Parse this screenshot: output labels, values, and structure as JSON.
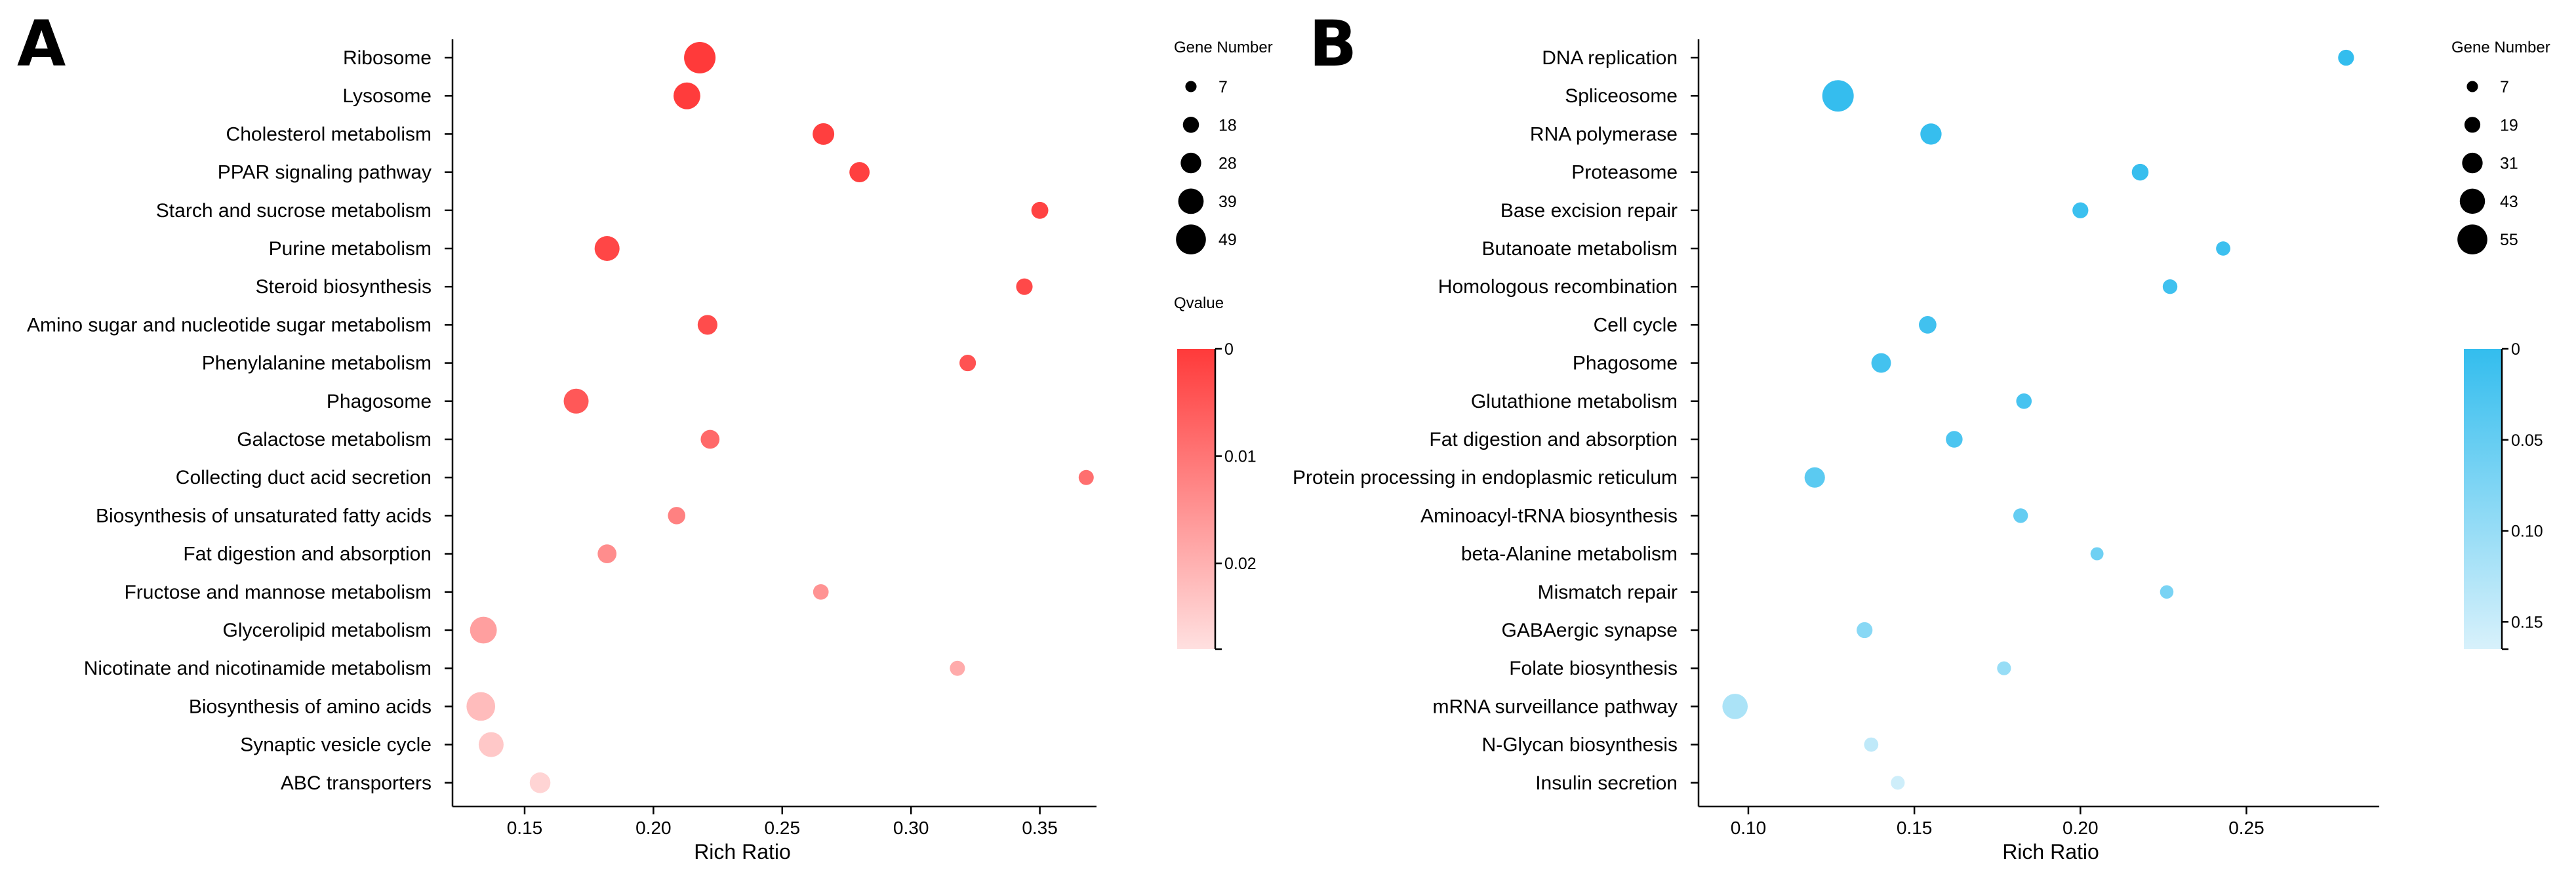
{
  "chart_data": [
    {
      "panel": "A",
      "type": "scatter",
      "xlabel": "Rich Ratio",
      "xlim": [
        0.122,
        0.372
      ],
      "xticks": [
        0.15,
        0.2,
        0.25,
        0.3,
        0.35
      ],
      "xtick_labels": [
        "0.15",
        "0.20",
        "0.25",
        "0.30",
        "0.35"
      ],
      "points": [
        {
          "pathway": "Ribosome",
          "rich_ratio": 0.218,
          "gene_number": 49,
          "qvalue": 0.0
        },
        {
          "pathway": "Lysosome",
          "rich_ratio": 0.213,
          "gene_number": 39,
          "qvalue": 0.0003
        },
        {
          "pathway": "Cholesterol metabolism",
          "rich_ratio": 0.266,
          "gene_number": 28,
          "qvalue": 0.0008
        },
        {
          "pathway": "PPAR signaling pathway",
          "rich_ratio": 0.28,
          "gene_number": 25,
          "qvalue": 0.001
        },
        {
          "pathway": "Starch and sucrose metabolism",
          "rich_ratio": 0.35,
          "gene_number": 18,
          "qvalue": 0.0015
        },
        {
          "pathway": "Purine metabolism",
          "rich_ratio": 0.182,
          "gene_number": 35,
          "qvalue": 0.002
        },
        {
          "pathway": "Steroid biosynthesis",
          "rich_ratio": 0.344,
          "gene_number": 17,
          "qvalue": 0.0025
        },
        {
          "pathway": "Amino sugar and nucleotide sugar metabolism",
          "rich_ratio": 0.221,
          "gene_number": 24,
          "qvalue": 0.003
        },
        {
          "pathway": "Phenylalanine metabolism",
          "rich_ratio": 0.322,
          "gene_number": 17,
          "qvalue": 0.004
        },
        {
          "pathway": "Phagosome",
          "rich_ratio": 0.17,
          "gene_number": 35,
          "qvalue": 0.005
        },
        {
          "pathway": "Galactose metabolism",
          "rich_ratio": 0.222,
          "gene_number": 22,
          "qvalue": 0.008
        },
        {
          "pathway": "Collecting duct acid secretion",
          "rich_ratio": 0.368,
          "gene_number": 14,
          "qvalue": 0.009
        },
        {
          "pathway": "Biosynthesis of unsaturated fatty acids",
          "rich_ratio": 0.209,
          "gene_number": 19,
          "qvalue": 0.012
        },
        {
          "pathway": "Fat digestion and absorption",
          "rich_ratio": 0.182,
          "gene_number": 22,
          "qvalue": 0.014
        },
        {
          "pathway": "Fructose and mannose metabolism",
          "rich_ratio": 0.265,
          "gene_number": 15,
          "qvalue": 0.015
        },
        {
          "pathway": "Glycerolipid metabolism",
          "rich_ratio": 0.134,
          "gene_number": 39,
          "qvalue": 0.017
        },
        {
          "pathway": "Nicotinate and nicotinamide metabolism",
          "rich_ratio": 0.318,
          "gene_number": 14,
          "qvalue": 0.019
        },
        {
          "pathway": "Biosynthesis of amino acids",
          "rich_ratio": 0.133,
          "gene_number": 43,
          "qvalue": 0.022
        },
        {
          "pathway": "Synaptic vesicle cycle",
          "rich_ratio": 0.137,
          "gene_number": 35,
          "qvalue": 0.024
        },
        {
          "pathway": "ABC transporters",
          "rich_ratio": 0.156,
          "gene_number": 26,
          "qvalue": 0.026
        }
      ],
      "size_legend": {
        "title": "Gene Number",
        "values": [
          7,
          18,
          28,
          39,
          49
        ]
      },
      "color_legend": {
        "title": "Qvalue",
        "range": [
          0,
          0.028
        ],
        "ticks": [
          0,
          0.01,
          0.02
        ],
        "tick_labels": [
          "0",
          "0.01",
          "0.02"
        ],
        "color_low": "#ff3a3a",
        "color_high": "#ffe0e0"
      }
    },
    {
      "panel": "B",
      "type": "scatter",
      "xlabel": "Rich Ratio",
      "xlim": [
        0.085,
        0.29
      ],
      "xticks": [
        0.1,
        0.15,
        0.2,
        0.25
      ],
      "xtick_labels": [
        "0.10",
        "0.15",
        "0.20",
        "0.25"
      ],
      "points": [
        {
          "pathway": "DNA replication",
          "rich_ratio": 0.28,
          "gene_number": 17,
          "qvalue": 0.0
        },
        {
          "pathway": "Spliceosome",
          "rich_ratio": 0.127,
          "gene_number": 55,
          "qvalue": 0.0015
        },
        {
          "pathway": "RNA polymerase",
          "rich_ratio": 0.155,
          "gene_number": 30,
          "qvalue": 0.003
        },
        {
          "pathway": "Proteasome",
          "rich_ratio": 0.218,
          "gene_number": 19,
          "qvalue": 0.004
        },
        {
          "pathway": "Base excision repair",
          "rich_ratio": 0.2,
          "gene_number": 17,
          "qvalue": 0.008
        },
        {
          "pathway": "Butanoate metabolism",
          "rich_ratio": 0.243,
          "gene_number": 13,
          "qvalue": 0.01
        },
        {
          "pathway": "Homologous recombination",
          "rich_ratio": 0.227,
          "gene_number": 14,
          "qvalue": 0.012
        },
        {
          "pathway": "Cell cycle",
          "rich_ratio": 0.154,
          "gene_number": 21,
          "qvalue": 0.014
        },
        {
          "pathway": "Phagosome",
          "rich_ratio": 0.14,
          "gene_number": 26,
          "qvalue": 0.016
        },
        {
          "pathway": "Glutathione metabolism",
          "rich_ratio": 0.183,
          "gene_number": 16,
          "qvalue": 0.02
        },
        {
          "pathway": "Fat digestion and absorption",
          "rich_ratio": 0.162,
          "gene_number": 19,
          "qvalue": 0.025
        },
        {
          "pathway": "Protein processing in endoplasmic reticulum",
          "rich_ratio": 0.12,
          "gene_number": 28,
          "qvalue": 0.04
        },
        {
          "pathway": "Aminoacyl-tRNA biosynthesis",
          "rich_ratio": 0.182,
          "gene_number": 14,
          "qvalue": 0.05
        },
        {
          "pathway": "beta-Alanine metabolism",
          "rich_ratio": 0.205,
          "gene_number": 10,
          "qvalue": 0.06
        },
        {
          "pathway": "Mismatch repair",
          "rich_ratio": 0.226,
          "gene_number": 11,
          "qvalue": 0.07
        },
        {
          "pathway": "GABAergic synapse",
          "rich_ratio": 0.135,
          "gene_number": 17,
          "qvalue": 0.085
        },
        {
          "pathway": "Folate biosynthesis",
          "rich_ratio": 0.177,
          "gene_number": 12,
          "qvalue": 0.1
        },
        {
          "pathway": "mRNA surveillance pathway",
          "rich_ratio": 0.096,
          "gene_number": 40,
          "qvalue": 0.12
        },
        {
          "pathway": "N-Glycan biosynthesis",
          "rich_ratio": 0.137,
          "gene_number": 13,
          "qvalue": 0.14
        },
        {
          "pathway": "Insulin secretion",
          "rich_ratio": 0.145,
          "gene_number": 12,
          "qvalue": 0.155
        }
      ],
      "size_legend": {
        "title": "Gene Number",
        "values": [
          7,
          19,
          31,
          43,
          55
        ]
      },
      "color_legend": {
        "title": "",
        "range": [
          0,
          0.165
        ],
        "ticks": [
          0,
          0.05,
          0.1,
          0.15
        ],
        "tick_labels": [
          "0",
          "0.05",
          "0.10",
          "0.15"
        ],
        "color_low": "#33bdee",
        "color_high": "#d8f1fb"
      }
    }
  ],
  "panel_letters": [
    "A",
    "B"
  ]
}
